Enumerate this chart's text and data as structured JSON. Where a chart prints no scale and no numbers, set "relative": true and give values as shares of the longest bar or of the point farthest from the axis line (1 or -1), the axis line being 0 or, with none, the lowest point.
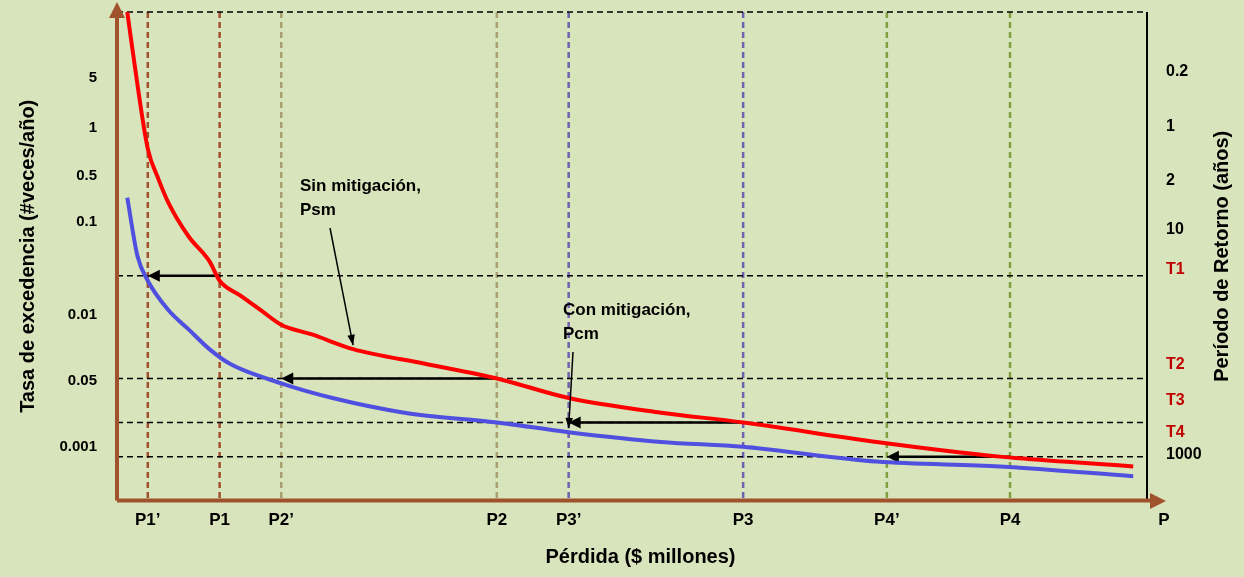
{
  "chart_data": {
    "type": "line",
    "relative": true,
    "xlabel": "Pérdida ($ millones)",
    "ylabel": "Tasa de excedencia (#veces/año)",
    "y2label": "Período de Retorno (años)",
    "categories": [
      null,
      null,
      null,
      "P1’",
      null,
      null,
      null,
      null,
      null,
      null,
      "P1",
      null,
      null,
      null,
      null,
      null,
      "P2’",
      null,
      null,
      null,
      null,
      null,
      null,
      null,
      null,
      null,
      null,
      null,
      null,
      null,
      null,
      null,
      null,
      null,
      null,
      null,
      null,
      "P2",
      null,
      null,
      null,
      null,
      null,
      null,
      "P3’",
      null,
      null,
      null,
      null,
      null,
      null,
      null,
      null,
      null,
      null,
      null,
      null,
      null,
      null,
      null,
      null,
      "P3",
      null,
      null,
      null,
      null,
      null,
      null,
      null,
      null,
      null,
      null,
      null,
      null,
      null,
      "P4’",
      null,
      null,
      null,
      null,
      null,
      null,
      null,
      null,
      null,
      null,
      null,
      "P4",
      null,
      null,
      null,
      null,
      null,
      null,
      null,
      null,
      null,
      null,
      null,
      null,
      null,
      null,
      "P"
    ],
    "grid": false,
    "legend": false,
    "marker": "none",
    "line_style": "solid",
    "series": [
      {
        "color": "#ff0000",
        "values": [
          null,
          1.0,
          0.85,
          0.72,
          0.66,
          0.61,
          null,
          0.54,
          null,
          0.49,
          0.45,
          null,
          0.42,
          null,
          0.39,
          null,
          0.36,
          null,
          null,
          0.34,
          null,
          null,
          null,
          0.31,
          null,
          null,
          null,
          null,
          null,
          null,
          0.28,
          null,
          null,
          null,
          null,
          null,
          null,
          0.25,
          null,
          null,
          null,
          null,
          null,
          null,
          0.21,
          null,
          null,
          null,
          null,
          null,
          null,
          null,
          null,
          0.18,
          null,
          null,
          null,
          null,
          null,
          null,
          null,
          0.16,
          null,
          null,
          null,
          null,
          null,
          null,
          null,
          null,
          null,
          null,
          null,
          null,
          0.12,
          null,
          null,
          null,
          null,
          null,
          null,
          null,
          null,
          null,
          null,
          null,
          0.09,
          null,
          null,
          null,
          null,
          null,
          null,
          null,
          null,
          null,
          null,
          null,
          null,
          0.07,
          null,
          null,
          null
        ]
      },
      {
        "color": "#5050e0",
        "values": [
          null,
          0.62,
          0.5,
          0.45,
          null,
          0.39,
          null,
          0.35,
          null,
          0.31,
          null,
          0.28,
          null,
          null,
          null,
          null,
          0.24,
          null,
          null,
          null,
          null,
          0.21,
          null,
          null,
          null,
          null,
          null,
          null,
          0.18,
          null,
          null,
          null,
          null,
          null,
          null,
          null,
          null,
          0.16,
          null,
          null,
          null,
          null,
          null,
          null,
          0.14,
          null,
          null,
          null,
          null,
          null,
          null,
          null,
          null,
          0.12,
          null,
          null,
          null,
          null,
          null,
          null,
          null,
          0.11,
          null,
          null,
          null,
          null,
          null,
          null,
          null,
          null,
          null,
          null,
          null,
          null,
          0.08,
          null,
          null,
          null,
          null,
          null,
          null,
          null,
          null,
          null,
          null,
          null,
          0.07,
          null,
          null,
          null,
          null,
          null,
          null,
          null,
          null,
          null,
          null,
          null,
          null,
          0.05,
          null,
          null,
          null
        ]
      }
    ],
    "ref_lines": [
      {
        "axis": "x",
        "value": "P1’",
        "color": "#a0522d",
        "line_style": "dashed"
      },
      {
        "axis": "x",
        "value": "P1",
        "color": "#a0522d",
        "line_style": "dashed"
      },
      {
        "axis": "x",
        "value": "P2’",
        "color": "#a8a070",
        "line_style": "dashed"
      },
      {
        "axis": "x",
        "value": "P2",
        "color": "#a8a070",
        "line_style": "dashed"
      },
      {
        "axis": "x",
        "value": "P3’",
        "color": "#7060b0",
        "line_style": "dashed"
      },
      {
        "axis": "x",
        "value": "P3",
        "color": "#7060b0",
        "line_style": "dashed"
      },
      {
        "axis": "x",
        "value": "P4’",
        "color": "#80a040",
        "line_style": "dashed"
      },
      {
        "axis": "x",
        "value": "P4",
        "color": "#80a040",
        "line_style": "dashed"
      },
      {
        "axis": "y",
        "value": 0.46,
        "color": "#000000",
        "line_style": "dashed"
      },
      {
        "axis": "y",
        "value": 0.25,
        "color": "#000000",
        "line_style": "dashed"
      },
      {
        "axis": "y",
        "value": 0.16,
        "color": "#000000",
        "line_style": "dashed"
      },
      {
        "axis": "y",
        "value": 0.09,
        "color": "#000000",
        "line_style": "dashed"
      },
      {
        "axis": "y",
        "value": 1.0,
        "color": "#000000",
        "line_style": "dashed"
      }
    ],
    "annotations": [
      "Sin mitigación,\nPsm",
      "Con mitigación,\nPcm",
      "5",
      "1",
      "0.5",
      "0.1",
      "0.01",
      "0.05",
      "0.001",
      "0.2",
      "1",
      "2",
      "10",
      "T1",
      "T2",
      "T3",
      "T4",
      "1000"
    ]
  }
}
